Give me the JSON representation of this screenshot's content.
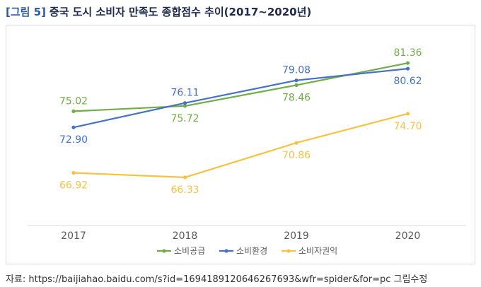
{
  "figure": {
    "label": "[그림 5]",
    "title": "중국 도시 소비자 만족도 종합점수 추이(2017~2020년)"
  },
  "source_note": "자료: https://baijiahao.baidu.com/s?id=1694189120646267693&wfr=spider&for=pc 그림수정",
  "colors": {
    "axis": "#d9d9d9",
    "tick_text": "#595959"
  },
  "chart_data": {
    "type": "line",
    "title": "중국 도시 소비자 만족도 종합점수 추이(2017~2020년)",
    "categories": [
      "2017",
      "2018",
      "2019",
      "2020"
    ],
    "ylim": [
      60,
      85
    ],
    "grid": false,
    "legend_position": "bottom",
    "series": [
      {
        "name": "소비공급",
        "color": "#70ad47",
        "values": [
          75.02,
          75.72,
          78.46,
          81.36
        ],
        "labels": [
          "75.02",
          "75.72",
          "78.46",
          "81.36"
        ],
        "label_pos": [
          "above",
          "below",
          "below",
          "above"
        ]
      },
      {
        "name": "소비환경",
        "color": "#4472c4",
        "values": [
          72.9,
          76.11,
          79.08,
          80.62
        ],
        "labels": [
          "72.90",
          "76.11",
          "79.08",
          "80.62"
        ],
        "label_pos": [
          "below",
          "above",
          "above",
          "below"
        ]
      },
      {
        "name": "소비자권익",
        "color": "#f5c242",
        "values": [
          66.92,
          66.33,
          70.86,
          74.7
        ],
        "labels": [
          "66.92",
          "66.33",
          "70.86",
          "74.70"
        ],
        "label_pos": [
          "below",
          "below",
          "below",
          "below"
        ]
      }
    ]
  }
}
